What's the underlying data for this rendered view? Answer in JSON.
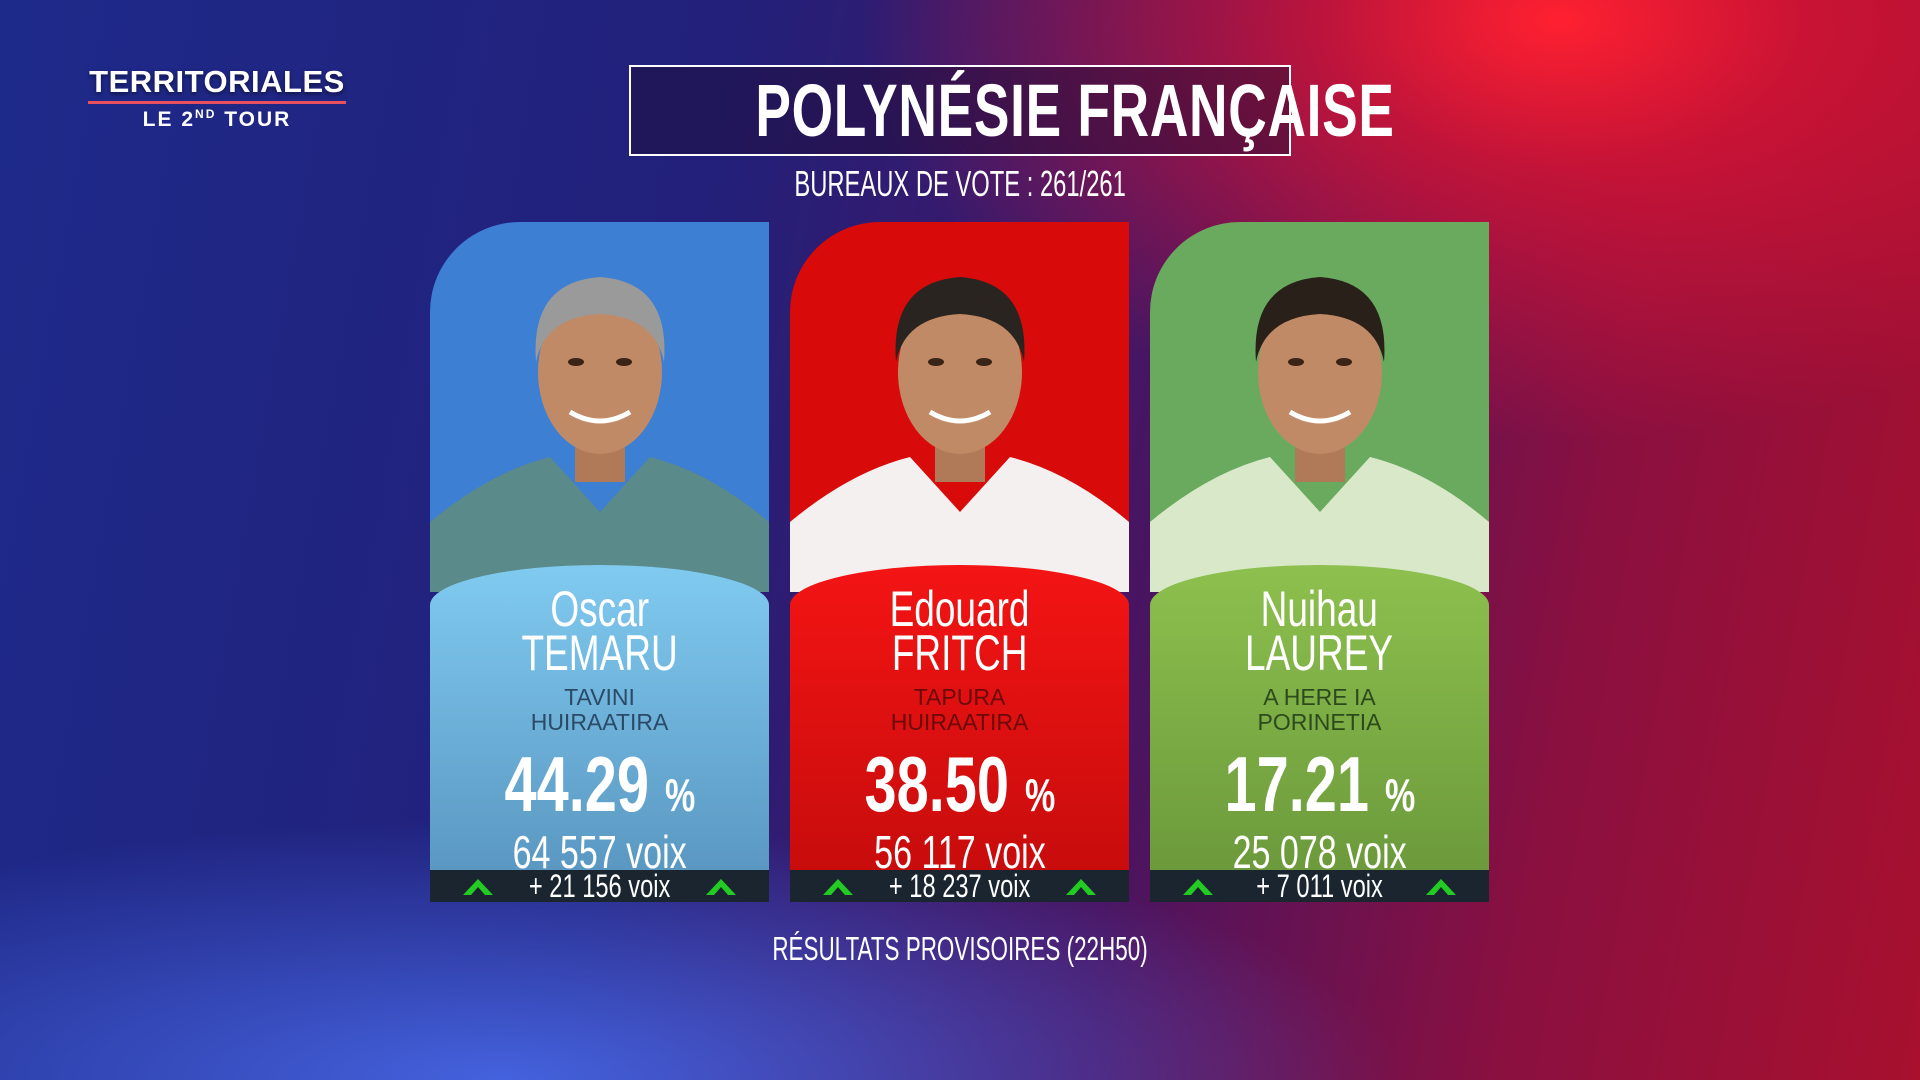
{
  "logo": {
    "title": "TERRITORIALES",
    "subtitle_prefix": "LE 2",
    "subtitle_sup": "ND",
    "subtitle_suffix": " TOUR"
  },
  "header": {
    "title": "POLYNÉSIE FRANÇAISE",
    "bureaux": "BUREAUX DE VOTE : 261/261"
  },
  "candidates": [
    {
      "first_name": "Oscar",
      "last_name": "TEMARU",
      "party_line1": "TAVINI",
      "party_line2": "HUIRAATIRA",
      "percent": "44.29",
      "percent_unit": "%",
      "votes": "64 557 voix",
      "gain": "+ 21 156 voix",
      "photo_bg": "#3d7fd3",
      "info_top": "#80caf0",
      "info_bottom": "#5a98c2",
      "party_color": "#2a4a66",
      "trend_icon": "arrow-up-icon"
    },
    {
      "first_name": "Edouard",
      "last_name": "FRITCH",
      "party_line1": "TAPURA",
      "party_line2": "HUIRAATIRA",
      "percent": "38.50",
      "percent_unit": "%",
      "votes": "56 117 voix",
      "gain": "+ 18 237 voix",
      "photo_bg": "#d80a0a",
      "info_top": "#f41414",
      "info_bottom": "#c80c0c",
      "party_color": "#6a0a0a",
      "trend_icon": "arrow-up-icon"
    },
    {
      "first_name": "Nuihau",
      "last_name": "LAUREY",
      "party_line1": "A HERE IA",
      "party_line2": "PORINETIA",
      "percent": "17.21",
      "percent_unit": "%",
      "votes": "25 078 voix",
      "gain": "+ 7 011 voix",
      "photo_bg": "#6aaa5e",
      "info_top": "#8dc04e",
      "info_bottom": "#6c9a3c",
      "party_color": "#2c4a1c",
      "trend_icon": "arrow-up-icon"
    }
  ],
  "footer": {
    "status": "RÉSULTATS PROVISOIRES (22H50)"
  },
  "colors": {
    "arrow": "#22cc22",
    "bar": "#1a2530"
  }
}
